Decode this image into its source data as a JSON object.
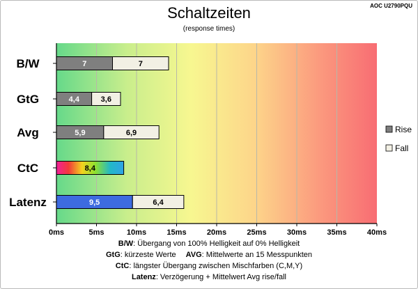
{
  "header": {
    "title": "Schaltzeiten",
    "subtitle": "(response times)",
    "model": "AOC U2790PQU"
  },
  "legend": {
    "rise": "Rise",
    "fall": "Fall"
  },
  "notes": {
    "bw_key": "B/W",
    "bw_text": ":  Übergang von 100% Helligkeit auf 0% Helligkeit",
    "gtg_key": "GtG",
    "gtg_text": ": kürzeste  Werte",
    "avg_key": "AVG",
    "avg_text": ": Mittelwerte  an 15 Messpunkten",
    "ctc_key": "CtC",
    "ctc_text": ": längster Übergang  zwischen Mischfarben  (C,M,Y)",
    "lat_key": "Latenz",
    "lat_text": ": Verzögerung  + Mittelwert Avg rise/fall"
  },
  "colors": {
    "rise": "#7f7f7f",
    "fall": "#f2f0e4",
    "latency": "#3d6be0",
    "background_gradient": [
      "#66d98a",
      "#c9ee8c",
      "#f7f790",
      "#fdd58a",
      "#fb9a7e",
      "#f86d73"
    ]
  },
  "chart_data": {
    "type": "bar",
    "orientation": "horizontal",
    "stacked": true,
    "categories": [
      "B/W",
      "GtG",
      "Avg",
      "CtC",
      "Latenz"
    ],
    "series": [
      {
        "name": "Rise",
        "values": [
          7,
          4.4,
          5.9,
          8.4,
          9.5
        ],
        "labels": [
          "7",
          "4,4",
          "5,9",
          "8,4",
          "9,5"
        ]
      },
      {
        "name": "Fall",
        "values": [
          7,
          3.6,
          6.9,
          null,
          6.4
        ],
        "labels": [
          "7",
          "3,6",
          "6,9",
          "",
          "6,4"
        ]
      }
    ],
    "xlim": [
      0,
      40
    ],
    "xticks": [
      0,
      5,
      10,
      15,
      20,
      25,
      30,
      35,
      40
    ],
    "xtick_labels": [
      "0ms",
      "5ms",
      "10ms",
      "15ms",
      "20ms",
      "25ms",
      "30ms",
      "35ms",
      "40ms"
    ],
    "grid": "vertical",
    "legend_position": "right"
  }
}
